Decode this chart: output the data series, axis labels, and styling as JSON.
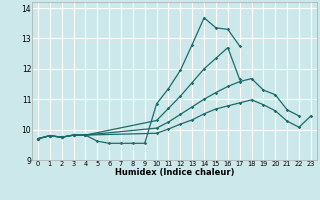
{
  "xlabel": "Humidex (Indice chaleur)",
  "xlim": [
    -0.5,
    23.5
  ],
  "ylim": [
    9,
    14.2
  ],
  "yticks": [
    9,
    10,
    11,
    12,
    13,
    14
  ],
  "xticks": [
    0,
    1,
    2,
    3,
    4,
    5,
    6,
    7,
    8,
    9,
    10,
    11,
    12,
    13,
    14,
    15,
    16,
    17,
    18,
    19,
    20,
    21,
    22,
    23
  ],
  "bg_color": "#cde8ea",
  "grid_color": "#ffffff",
  "line_color": "#1a6b6b",
  "lines": [
    {
      "x": [
        0,
        1,
        2,
        3,
        4,
        5,
        6,
        7,
        8,
        9,
        10,
        11,
        12,
        13,
        14,
        15,
        16,
        17
      ],
      "y": [
        9.7,
        9.8,
        9.75,
        9.82,
        9.82,
        9.62,
        9.55,
        9.55,
        9.55,
        9.55,
        10.85,
        11.35,
        11.95,
        12.8,
        13.68,
        13.35,
        13.3,
        12.75
      ]
    },
    {
      "x": [
        0,
        1,
        2,
        3,
        4,
        10,
        11,
        12,
        13,
        14,
        15,
        16,
        17
      ],
      "y": [
        9.7,
        9.8,
        9.75,
        9.82,
        9.82,
        10.3,
        10.7,
        11.1,
        11.55,
        12.0,
        12.35,
        12.7,
        11.65
      ]
    },
    {
      "x": [
        0,
        1,
        2,
        3,
        4,
        10,
        11,
        12,
        13,
        14,
        15,
        16,
        17,
        18,
        19,
        20,
        21,
        22
      ],
      "y": [
        9.7,
        9.8,
        9.75,
        9.82,
        9.82,
        10.05,
        10.25,
        10.5,
        10.75,
        11.0,
        11.22,
        11.42,
        11.58,
        11.68,
        11.3,
        11.15,
        10.65,
        10.45
      ]
    },
    {
      "x": [
        0,
        1,
        2,
        3,
        4,
        10,
        11,
        12,
        13,
        14,
        15,
        16,
        17,
        18,
        19,
        20,
        21,
        22,
        23
      ],
      "y": [
        9.7,
        9.8,
        9.75,
        9.82,
        9.82,
        9.88,
        10.02,
        10.18,
        10.32,
        10.52,
        10.68,
        10.78,
        10.88,
        10.98,
        10.82,
        10.62,
        10.28,
        10.08,
        10.45
      ]
    }
  ]
}
